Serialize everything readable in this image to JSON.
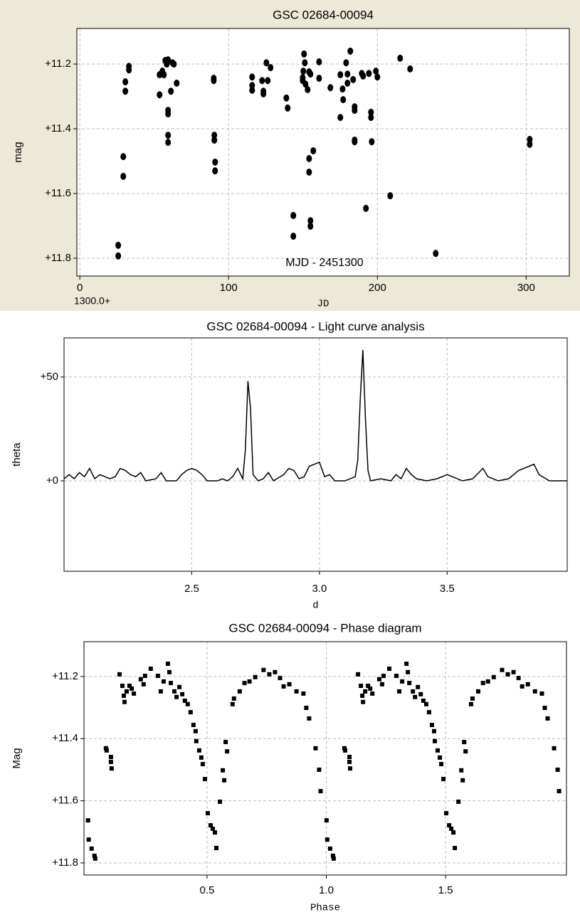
{
  "chart_data": [
    {
      "type": "scatter",
      "title": "GSC 02684-00094",
      "y_label": "mag",
      "x_label": "JD",
      "x_offset_label": "1300.0+",
      "annotation": "MJD - 2451300",
      "color": "#000000",
      "marker": "circle",
      "grid": true,
      "xlim": [
        -2,
        329
      ],
      "xticks": [
        0,
        100,
        200,
        300
      ],
      "ylim": [
        11.855,
        11.09
      ],
      "yticks": [
        {
          "value": 11.2,
          "label": "+11.2"
        },
        {
          "value": 11.4,
          "label": "+11.4"
        },
        {
          "value": 11.6,
          "label": "+11.6"
        },
        {
          "value": 11.8,
          "label": "+11.8"
        }
      ],
      "x": [
        25.8,
        25.8,
        29.2,
        29.2,
        30.6,
        30.6,
        33.0,
        33.0,
        53.6,
        53.6,
        55.5,
        56.5,
        57.4,
        58.4,
        59.3,
        59.3,
        59.3,
        59.3,
        59.3,
        61.2,
        62.2,
        63.2,
        65.1,
        90.0,
        90.0,
        90.4,
        90.4,
        90.9,
        90.9,
        115.8,
        115.8,
        115.8,
        122.5,
        123.4,
        123.4,
        125.4,
        126.3,
        128.2,
        138.8,
        139.7,
        143.5,
        143.5,
        149.8,
        149.8,
        150.2,
        150.7,
        151.2,
        151.7,
        153.1,
        154.1,
        155.0,
        154.1,
        154.1,
        155.0,
        155.0,
        156.9,
        160.8,
        160.8,
        168.4,
        175.1,
        175.1,
        176.6,
        177.0,
        179.0,
        179.9,
        179.9,
        181.8,
        183.7,
        184.7,
        184.7,
        184.7,
        184.7,
        189.5,
        190.4,
        192.3,
        194.3,
        195.7,
        195.7,
        196.2,
        199.0,
        200.0,
        208.6,
        215.3,
        222.0,
        239.2,
        302.4,
        302.4
      ],
      "values": [
        11.76,
        11.793,
        11.486,
        11.547,
        11.255,
        11.284,
        11.207,
        11.218,
        11.233,
        11.295,
        11.222,
        11.233,
        11.189,
        11.2,
        11.187,
        11.343,
        11.354,
        11.42,
        11.442,
        11.284,
        11.196,
        11.2,
        11.259,
        11.244,
        11.251,
        11.42,
        11.435,
        11.503,
        11.53,
        11.24,
        11.266,
        11.281,
        11.251,
        11.284,
        11.292,
        11.196,
        11.251,
        11.211,
        11.305,
        11.336,
        11.668,
        11.732,
        11.242,
        11.251,
        11.222,
        11.169,
        11.196,
        11.262,
        11.279,
        11.224,
        11.231,
        11.492,
        11.534,
        11.684,
        11.701,
        11.468,
        11.193,
        11.244,
        11.273,
        11.365,
        11.233,
        11.277,
        11.31,
        11.196,
        11.231,
        11.259,
        11.16,
        11.248,
        11.332,
        11.343,
        11.435,
        11.44,
        11.229,
        11.237,
        11.646,
        11.229,
        11.349,
        11.365,
        11.44,
        11.222,
        11.24,
        11.607,
        11.182,
        11.215,
        11.785,
        11.433,
        11.448
      ]
    },
    {
      "type": "line",
      "title": "GSC 02684-00094 - Light curve analysis",
      "y_label": "theta",
      "x_label": "d",
      "color": "#000000",
      "grid": true,
      "xlim": [
        2.0,
        3.97
      ],
      "xticks": [
        2.5,
        {
          "value": 3,
          "label": "3.0"
        },
        3.5
      ],
      "ylim": [
        -43.5,
        68.8
      ],
      "yticks": [
        {
          "value": 0,
          "label": "+0"
        },
        {
          "value": 50,
          "label": "+50"
        }
      ],
      "x": [
        2.0,
        2.02,
        2.04,
        2.06,
        2.08,
        2.1,
        2.12,
        2.14,
        2.16,
        2.18,
        2.2,
        2.22,
        2.24,
        2.26,
        2.28,
        2.3,
        2.32,
        2.36,
        2.38,
        2.4,
        2.44,
        2.46,
        2.48,
        2.5,
        2.52,
        2.54,
        2.56,
        2.6,
        2.62,
        2.64,
        2.66,
        2.68,
        2.7,
        2.71,
        2.72,
        2.73,
        2.74,
        2.76,
        2.78,
        2.8,
        2.82,
        2.86,
        2.88,
        2.9,
        2.92,
        2.94,
        2.96,
        2.98,
        3.0,
        3.02,
        3.04,
        3.06,
        3.1,
        3.14,
        3.15,
        3.16,
        3.17,
        3.18,
        3.19,
        3.2,
        3.24,
        3.28,
        3.3,
        3.32,
        3.34,
        3.36,
        3.38,
        3.42,
        3.46,
        3.5,
        3.52,
        3.56,
        3.6,
        3.64,
        3.66,
        3.7,
        3.74,
        3.78,
        3.8,
        3.82,
        3.84,
        3.86,
        3.9,
        3.94,
        3.97
      ],
      "values": [
        1,
        3,
        1,
        4,
        2,
        6,
        1,
        3,
        2,
        1,
        2,
        6,
        5,
        3,
        2,
        4,
        0,
        1,
        4,
        0,
        0,
        3,
        5,
        6,
        5,
        3,
        0,
        0,
        1,
        0,
        2,
        6,
        1,
        15,
        48,
        35,
        3,
        0,
        1,
        4,
        0,
        3,
        6,
        5,
        1,
        2,
        7,
        8,
        9,
        2,
        3,
        0,
        0,
        2,
        10,
        40,
        63,
        30,
        5,
        0,
        1,
        0,
        3,
        1,
        6,
        3,
        1,
        0,
        1,
        3,
        2,
        0,
        1,
        6,
        2,
        0,
        1,
        5,
        6,
        7,
        8,
        3,
        0,
        0,
        0
      ]
    },
    {
      "type": "scatter",
      "title": "GSC 02684-00094 - Phase diagram",
      "y_label": "Mag",
      "x_label": "Phase",
      "color": "#000000",
      "marker": "square",
      "grid": true,
      "xlim": [
        -0.016,
        2.007
      ],
      "xticks": [
        0.5,
        {
          "value": 1,
          "label": "1.0"
        },
        1.5
      ],
      "ylim": [
        11.839,
        11.088
      ],
      "yticks": [
        {
          "value": 11.2,
          "label": "+11.2"
        },
        {
          "value": 11.4,
          "label": "+11.4"
        },
        {
          "value": 11.6,
          "label": "+11.6"
        },
        {
          "value": 11.8,
          "label": "+11.8"
        }
      ],
      "x": [
        0.001,
        0.004,
        0.016,
        0.028,
        0.031,
        0.076,
        0.079,
        0.097,
        0.097,
        0.1,
        0.133,
        0.145,
        0.151,
        0.154,
        0.163,
        0.175,
        0.184,
        0.193,
        0.222,
        0.234,
        0.24,
        0.264,
        0.294,
        0.306,
        0.318,
        0.336,
        0.342,
        0.348,
        0.363,
        0.372,
        0.384,
        0.396,
        0.407,
        0.419,
        0.431,
        0.443,
        0.452,
        0.455,
        0.467,
        0.476,
        0.482,
        0.491,
        0.503,
        0.515,
        0.524,
        0.533,
        0.539,
        0.554,
        0.566,
        0.572,
        0.578,
        0.584,
        0.607,
        0.613,
        0.637,
        0.657,
        0.678,
        0.702,
        0.737,
        0.761,
        0.785,
        0.806,
        0.821,
        0.845,
        0.875,
        0.904,
        0.916,
        0.928,
        0.955,
        0.97,
        0.976,
        1.001,
        1.004,
        1.016,
        1.028,
        1.031,
        1.076,
        1.079,
        1.097,
        1.097,
        1.1,
        1.133,
        1.145,
        1.151,
        1.154,
        1.163,
        1.175,
        1.184,
        1.193,
        1.222,
        1.234,
        1.24,
        1.264,
        1.294,
        1.306,
        1.318,
        1.336,
        1.342,
        1.348,
        1.363,
        1.372,
        1.384,
        1.396,
        1.407,
        1.419,
        1.431,
        1.443,
        1.452,
        1.455,
        1.467,
        1.476,
        1.482,
        1.491,
        1.503,
        1.515,
        1.524,
        1.533,
        1.539,
        1.554,
        1.566,
        1.572,
        1.578,
        1.584,
        1.607,
        1.613,
        1.637,
        1.657,
        1.678,
        1.702,
        1.737,
        1.761,
        1.785,
        1.806,
        1.821,
        1.845,
        1.875,
        1.904,
        1.916,
        1.928,
        1.955,
        1.97,
        1.976
      ],
      "values": [
        11.663,
        11.725,
        11.754,
        11.777,
        11.786,
        11.431,
        11.438,
        11.459,
        11.475,
        11.496,
        11.193,
        11.23,
        11.262,
        11.282,
        11.248,
        11.23,
        11.239,
        11.255,
        11.209,
        11.225,
        11.198,
        11.175,
        11.198,
        11.248,
        11.216,
        11.159,
        11.186,
        11.221,
        11.248,
        11.266,
        11.234,
        11.257,
        11.278,
        11.289,
        11.315,
        11.356,
        11.376,
        11.408,
        11.438,
        11.461,
        11.482,
        11.53,
        11.64,
        11.679,
        11.69,
        11.702,
        11.752,
        11.603,
        11.502,
        11.534,
        11.411,
        11.441,
        11.289,
        11.271,
        11.248,
        11.221,
        11.216,
        11.202,
        11.179,
        11.193,
        11.186,
        11.205,
        11.232,
        11.225,
        11.248,
        11.255,
        11.301,
        11.335,
        11.431,
        11.5,
        11.569,
        11.663,
        11.725,
        11.754,
        11.777,
        11.786,
        11.431,
        11.438,
        11.459,
        11.475,
        11.496,
        11.193,
        11.23,
        11.262,
        11.282,
        11.248,
        11.23,
        11.239,
        11.255,
        11.209,
        11.225,
        11.198,
        11.175,
        11.198,
        11.248,
        11.216,
        11.159,
        11.186,
        11.221,
        11.248,
        11.266,
        11.234,
        11.257,
        11.278,
        11.289,
        11.315,
        11.356,
        11.376,
        11.408,
        11.438,
        11.461,
        11.482,
        11.53,
        11.64,
        11.679,
        11.69,
        11.702,
        11.752,
        11.603,
        11.502,
        11.534,
        11.411,
        11.441,
        11.289,
        11.271,
        11.248,
        11.221,
        11.216,
        11.202,
        11.179,
        11.193,
        11.186,
        11.205,
        11.232,
        11.225,
        11.248,
        11.255,
        11.301,
        11.335,
        11.431,
        11.5,
        11.569
      ]
    }
  ]
}
